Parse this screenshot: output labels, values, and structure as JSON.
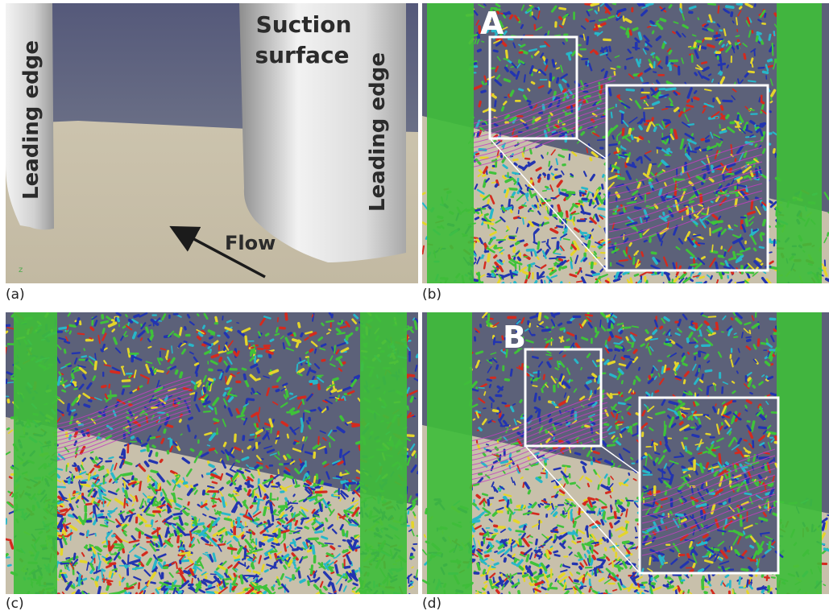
{
  "captions": {
    "a": "(a)",
    "b": "(b)",
    "c": "(c)",
    "d": "(d)"
  },
  "panel_a": {
    "label_left": "Leading edge",
    "label_right": "Leading edge",
    "suction_line1": "Suction",
    "suction_line2": "surface",
    "flow": "Flow",
    "axis_mark": "z"
  },
  "panel_b": {
    "box_label": "A"
  },
  "panel_d": {
    "box_label": "B"
  },
  "colors": {
    "sky": "#5a6178",
    "floor": "#cbc3ae",
    "blade": "#e6e6e6",
    "vortex_green": "#3fc23a",
    "vortex_blue": "#2234b0",
    "vortex_red": "#d42a1e",
    "vortex_cyan": "#27b7c9",
    "vortex_yellow": "#e4d52a",
    "streamline": "#c23fc0"
  }
}
